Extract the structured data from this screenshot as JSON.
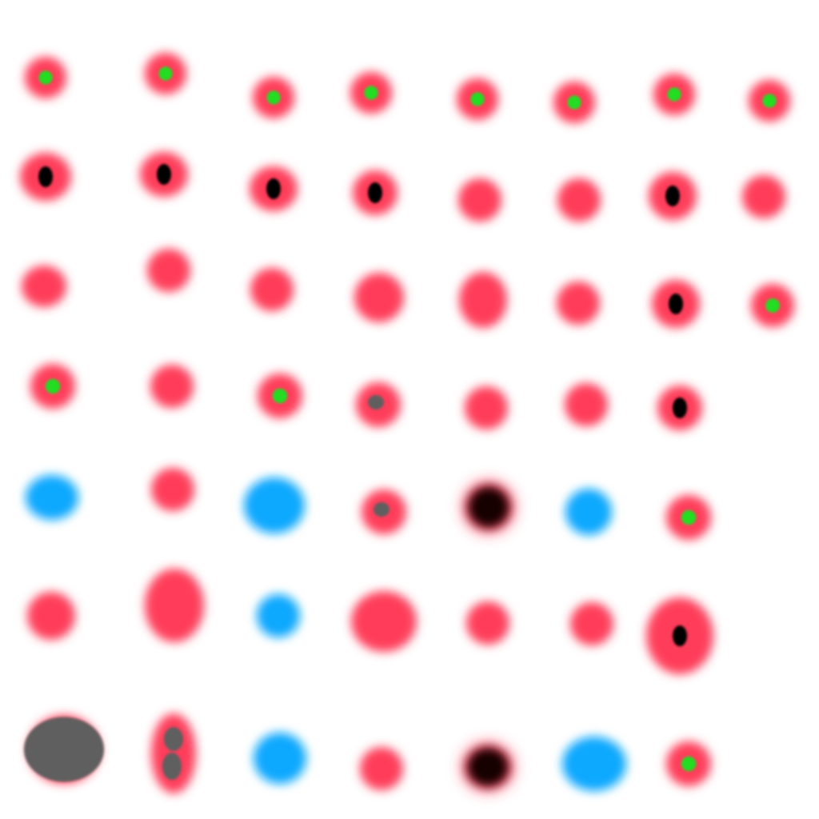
{
  "colors": {
    "background": "#ffffff",
    "red": "#ff3c5a",
    "green": "#22dd22",
    "black": "#000000",
    "blue": "#0ea8ff",
    "gray": "#5f5f5f",
    "dark": "#120000"
  },
  "rows": [
    {
      "id": "row-1",
      "spots": [
        {
          "kind": "red-green-dot"
        },
        {
          "kind": "red-green-dot"
        },
        {
          "kind": "red-green-dot"
        },
        {
          "kind": "red-green-dot"
        },
        {
          "kind": "red-green-dot"
        },
        {
          "kind": "red-green-dot"
        },
        {
          "kind": "red-green-dot"
        },
        {
          "kind": "red-green-dot"
        }
      ]
    },
    {
      "id": "row-2",
      "spots": [
        {
          "kind": "red-black-dot"
        },
        {
          "kind": "red-black-dot"
        },
        {
          "kind": "red-black-dot"
        },
        {
          "kind": "red-black-dot"
        },
        {
          "kind": "red"
        },
        {
          "kind": "red"
        },
        {
          "kind": "red-black-dot"
        },
        {
          "kind": "red"
        }
      ]
    },
    {
      "id": "row-3",
      "spots": [
        {
          "kind": "red"
        },
        {
          "kind": "red"
        },
        {
          "kind": "red"
        },
        {
          "kind": "red"
        },
        {
          "kind": "red"
        },
        {
          "kind": "red"
        },
        {
          "kind": "red-black-dot"
        },
        {
          "kind": "red-green-dot"
        }
      ]
    },
    {
      "id": "row-4",
      "spots": [
        {
          "kind": "red-green-dot"
        },
        {
          "kind": "red"
        },
        {
          "kind": "red-green-dot"
        },
        {
          "kind": "red-gray-dot"
        },
        {
          "kind": "red"
        },
        {
          "kind": "red"
        },
        {
          "kind": "red-black-dot"
        }
      ]
    },
    {
      "id": "row-5",
      "spots": [
        {
          "kind": "blue"
        },
        {
          "kind": "red"
        },
        {
          "kind": "blue"
        },
        {
          "kind": "red-gray-dot"
        },
        {
          "kind": "dark"
        },
        {
          "kind": "blue"
        },
        {
          "kind": "red-green-dot"
        }
      ]
    },
    {
      "id": "row-6",
      "spots": [
        {
          "kind": "red"
        },
        {
          "kind": "red"
        },
        {
          "kind": "blue"
        },
        {
          "kind": "red"
        },
        {
          "kind": "red"
        },
        {
          "kind": "red"
        },
        {
          "kind": "red-black-dot"
        }
      ]
    },
    {
      "id": "row-7",
      "spots": [
        {
          "kind": "gray-blob"
        },
        {
          "kind": "red-gray-blobs"
        },
        {
          "kind": "blue"
        },
        {
          "kind": "red"
        },
        {
          "kind": "dark"
        },
        {
          "kind": "blue"
        },
        {
          "kind": "red-green-dot"
        }
      ]
    }
  ]
}
